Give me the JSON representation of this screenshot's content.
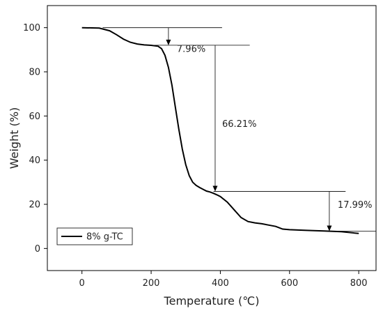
{
  "chart_data": {
    "type": "line",
    "xlabel": "Temperature (℃)",
    "ylabel": "Weight (%)",
    "xlim": [
      -100,
      850
    ],
    "ylim": [
      -10,
      110
    ],
    "xticks": [
      0,
      200,
      400,
      600,
      800
    ],
    "yticks": [
      0,
      20,
      40,
      60,
      80,
      100
    ],
    "legend": {
      "label": "8% g-TC",
      "placement": "bottom-left"
    },
    "series": [
      {
        "name": "8% g-TC",
        "color": "#000000",
        "x": [
          0,
          50,
          80,
          100,
          120,
          140,
          160,
          180,
          200,
          220,
          230,
          240,
          250,
          260,
          270,
          280,
          290,
          300,
          310,
          320,
          330,
          340,
          350,
          360,
          370,
          380,
          390,
          400,
          420,
          440,
          460,
          480,
          500,
          520,
          540,
          560,
          580,
          600,
          650,
          700,
          750,
          800
        ],
        "y": [
          100,
          99.8,
          98.6,
          96.8,
          94.8,
          93.4,
          92.6,
          92.2,
          92.0,
          91.6,
          90.5,
          87.5,
          82,
          74,
          64,
          54,
          45,
          38,
          33,
          30,
          28.6,
          27.6,
          26.8,
          26.0,
          25.6,
          25.0,
          24.3,
          23.5,
          21,
          17.5,
          14,
          12.2,
          11.6,
          11.2,
          10.6,
          10.0,
          8.8,
          8.5,
          8.2,
          7.9,
          7.6,
          6.8
        ]
      }
    ],
    "annotations": [
      {
        "text": "7.96%",
        "from_y": 100,
        "to_y": 92.04,
        "x": 250
      },
      {
        "text": "66.21%",
        "from_y": 92.04,
        "to_y": 25.83,
        "x": 385
      },
      {
        "text": "17.99%",
        "from_y": 25.83,
        "to_y": 7.84,
        "x": 715
      }
    ],
    "grid": false
  }
}
